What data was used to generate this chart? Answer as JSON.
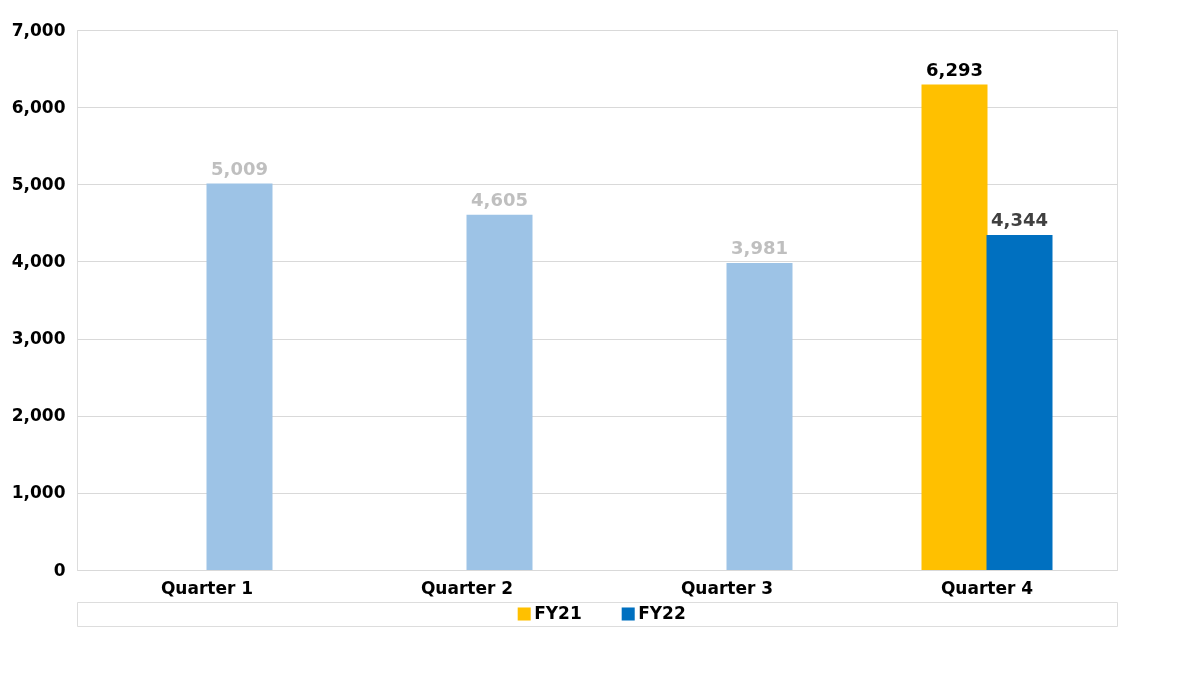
{
  "chart_data": {
    "type": "bar",
    "categories": [
      "Quarter 1",
      "Quarter 2",
      "Quarter 3",
      "Quarter 4"
    ],
    "series": [
      {
        "name": "FY21",
        "color": "#ffc000",
        "values": [
          null,
          null,
          null,
          6293
        ],
        "value_labels": [
          null,
          null,
          null,
          "6,293"
        ]
      },
      {
        "name": "FY22",
        "color": "#0070c0",
        "colors": [
          "#9dc3e6",
          "#9dc3e6",
          "#9dc3e6",
          "#0070c0"
        ],
        "values": [
          5009,
          4605,
          3981,
          4344
        ],
        "value_labels": [
          "5,009",
          "4,605",
          "3,981",
          "4,344"
        ]
      }
    ],
    "ylim": [
      0,
      7000
    ],
    "yticks": [
      0,
      {
        "value": 1000,
        "label": "1,000"
      },
      {
        "value": 2000,
        "label": "2,000"
      },
      {
        "value": 3000,
        "label": "3,000"
      },
      {
        "value": 4000,
        "label": "4,000"
      },
      {
        "value": 5000,
        "label": "5,000"
      },
      {
        "value": 6000,
        "label": "6,000"
      },
      {
        "value": 7000,
        "label": "7,000"
      }
    ],
    "grid": "y",
    "legend": "bottom"
  }
}
